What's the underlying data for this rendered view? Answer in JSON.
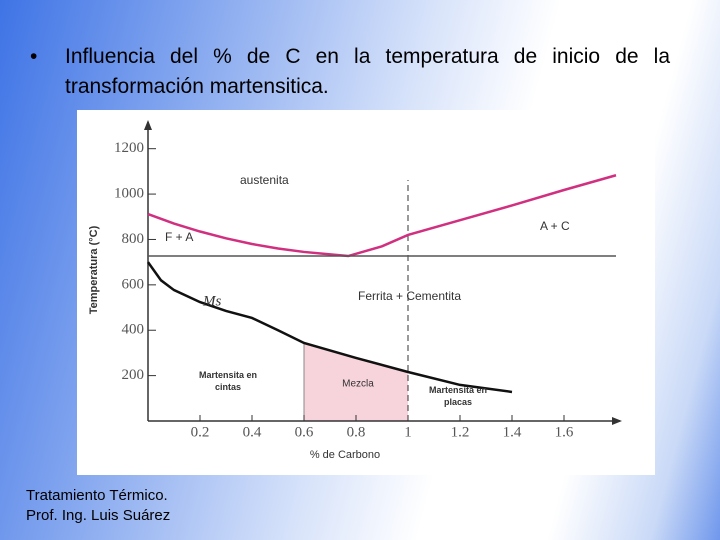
{
  "slide": {
    "bullet": "Influencia del % de C en la temperatura de inicio de la transformación martensitica.",
    "footer": [
      "Tratamiento Térmico.",
      "Prof. Ing. Luis Suárez"
    ]
  },
  "chart_data": {
    "type": "line",
    "xlabel": "% de Carbono",
    "ylabel": "Temperatura (°C)",
    "xlim": [
      0,
      1.8
    ],
    "ylim": [
      0,
      1300
    ],
    "xticks": [
      0.2,
      0.4,
      0.6,
      0.8,
      1.0,
      1.2,
      1.4,
      1.6
    ],
    "yticks": [
      200,
      400,
      600,
      800,
      1000,
      1200
    ],
    "series": [
      {
        "color": "#d0307f",
        "x": [
          0,
          0.1,
          0.2,
          0.3,
          0.4,
          0.5,
          0.6,
          0.77,
          0.9,
          1.0,
          1.2,
          1.4,
          1.6,
          1.8
        ],
        "values": [
          912,
          870,
          835,
          805,
          780,
          760,
          745,
          727,
          770,
          820,
          885,
          950,
          1018,
          1083
        ]
      },
      {
        "color": "#555555",
        "x": [
          0,
          1.8
        ],
        "values": [
          727,
          727
        ]
      },
      {
        "color": "#111111",
        "x": [
          0,
          0.05,
          0.1,
          0.2,
          0.3,
          0.4,
          0.5,
          0.6,
          0.8,
          1.0,
          1.2,
          1.4
        ],
        "values": [
          700,
          620,
          577,
          524,
          485,
          454,
          400,
          344,
          278,
          216,
          159,
          128
        ]
      }
    ],
    "shaded_xrange": [
      0.6,
      1.0
    ],
    "shade_color": "#f7d3dc",
    "dashed_x": 1.0,
    "annotations": [
      "austenita",
      "F + A",
      "A + C",
      "Ferrita + Cementita",
      "Ms",
      "Martensita en cintas",
      "Mezcla",
      "Martensita en placas"
    ]
  }
}
